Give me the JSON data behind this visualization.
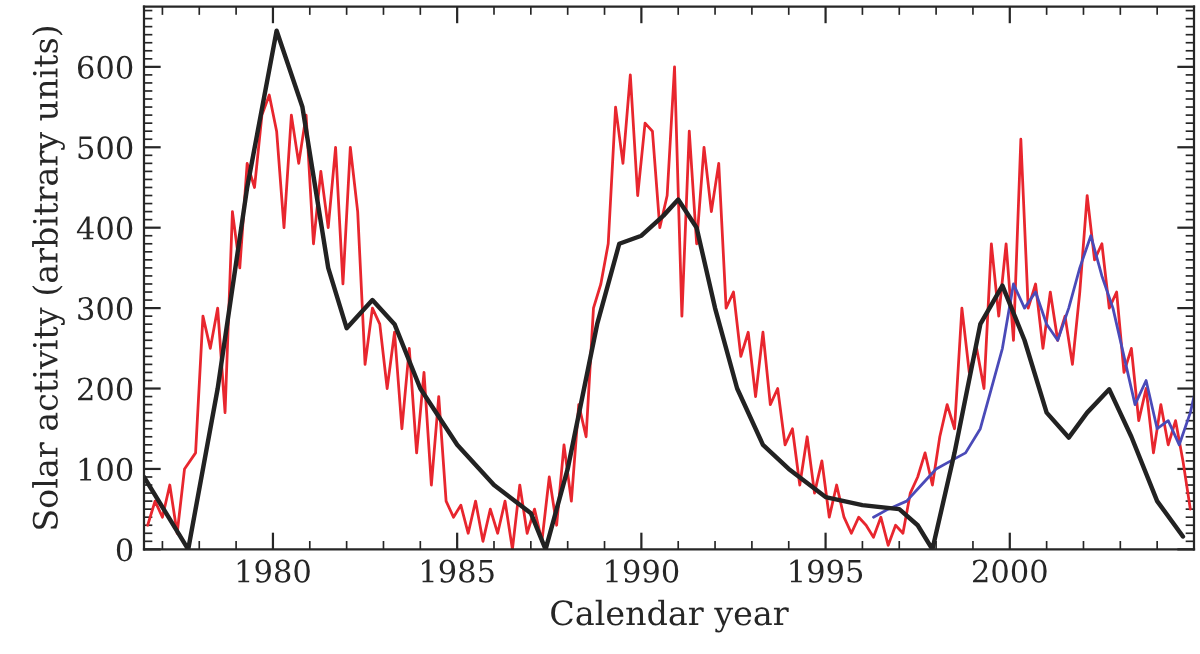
{
  "chart_data": {
    "type": "line",
    "xlabel": "Calendar year",
    "ylabel": "Solar activity (arbitrary units)",
    "xlim": [
      1976.5,
      2005.0
    ],
    "xticks": [
      1980,
      1985,
      1990,
      1995,
      2000
    ],
    "ylim": [
      0,
      675
    ],
    "yticks": [
      0,
      100,
      200,
      300,
      400,
      500,
      600
    ],
    "grid": false,
    "legend": false,
    "marker": "none",
    "line_style": "solid",
    "series": [
      {
        "color": "#e8262e",
        "x": [
          1976.6,
          1976.8,
          1977.0,
          1977.2,
          1977.4,
          1977.6,
          1977.9,
          1978.1,
          1978.3,
          1978.5,
          1978.7,
          1978.9,
          1979.1,
          1979.3,
          1979.5,
          1979.7,
          1979.9,
          1980.1,
          1980.3,
          1980.5,
          1980.7,
          1980.9,
          1981.1,
          1981.3,
          1981.5,
          1981.7,
          1981.9,
          1982.1,
          1982.3,
          1982.5,
          1982.7,
          1982.9,
          1983.1,
          1983.3,
          1983.5,
          1983.7,
          1983.9,
          1984.1,
          1984.3,
          1984.5,
          1984.7,
          1984.9,
          1985.1,
          1985.3,
          1985.5,
          1985.7,
          1985.9,
          1986.1,
          1986.3,
          1986.5,
          1986.7,
          1986.9,
          1987.1,
          1987.3,
          1987.5,
          1987.7,
          1987.9,
          1988.1,
          1988.3,
          1988.5,
          1988.7,
          1988.9,
          1989.1,
          1989.3,
          1989.5,
          1989.7,
          1989.9,
          1990.1,
          1990.3,
          1990.5,
          1990.7,
          1990.9,
          1991.1,
          1991.3,
          1991.5,
          1991.7,
          1991.9,
          1992.1,
          1992.3,
          1992.5,
          1992.7,
          1992.9,
          1993.1,
          1993.3,
          1993.5,
          1993.7,
          1993.9,
          1994.1,
          1994.3,
          1994.5,
          1994.7,
          1994.9,
          1995.1,
          1995.3,
          1995.5,
          1995.7,
          1995.9,
          1996.1,
          1996.3,
          1996.5,
          1996.7,
          1996.9,
          1997.1,
          1997.3,
          1997.5,
          1997.7,
          1997.9,
          1998.1,
          1998.3,
          1998.5,
          1998.7,
          1998.9,
          1999.1,
          1999.3,
          1999.5,
          1999.7,
          1999.9,
          2000.1,
          2000.3,
          2000.5,
          2000.7,
          2000.9,
          2001.1,
          2001.3,
          2001.5,
          2001.7,
          2001.9,
          2002.1,
          2002.3,
          2002.5,
          2002.7,
          2002.9,
          2003.1,
          2003.3,
          2003.5,
          2003.7,
          2003.9,
          2004.1,
          2004.3,
          2004.5,
          2004.7,
          2004.9
        ],
        "values": [
          30,
          60,
          40,
          80,
          20,
          100,
          120,
          290,
          250,
          300,
          170,
          420,
          350,
          480,
          450,
          540,
          565,
          520,
          400,
          540,
          480,
          540,
          380,
          470,
          400,
          500,
          330,
          500,
          420,
          230,
          300,
          280,
          200,
          270,
          150,
          250,
          120,
          220,
          80,
          190,
          60,
          40,
          55,
          20,
          60,
          10,
          50,
          20,
          60,
          0,
          80,
          20,
          50,
          10,
          90,
          30,
          130,
          60,
          180,
          140,
          300,
          330,
          380,
          550,
          480,
          590,
          440,
          530,
          520,
          400,
          440,
          600,
          290,
          520,
          380,
          500,
          420,
          480,
          300,
          320,
          240,
          270,
          190,
          270,
          180,
          200,
          130,
          150,
          80,
          140,
          70,
          110,
          40,
          80,
          40,
          20,
          40,
          30,
          15,
          40,
          5,
          30,
          20,
          70,
          90,
          120,
          80,
          140,
          180,
          150,
          300,
          220,
          250,
          200,
          380,
          290,
          380,
          260,
          510,
          300,
          330,
          250,
          320,
          260,
          290,
          230,
          320,
          440,
          360,
          380,
          300,
          320,
          220,
          250,
          160,
          200,
          120,
          180,
          130,
          160,
          110,
          50
        ]
      },
      {
        "color": "#4a4ab8",
        "x": [
          1996.3,
          1996.7,
          1997.2,
          1997.6,
          1998.0,
          1998.4,
          1998.8,
          1999.2,
          1999.5,
          1999.8,
          2000.1,
          2000.4,
          2000.7,
          2001.0,
          2001.3,
          2001.6,
          2001.9,
          2002.2,
          2002.5,
          2002.8,
          2003.1,
          2003.4,
          2003.7,
          2004.0,
          2004.3,
          2004.6,
          2004.9,
          2005.0
        ],
        "values": [
          40,
          50,
          60,
          80,
          100,
          110,
          120,
          150,
          200,
          250,
          330,
          300,
          320,
          280,
          260,
          300,
          350,
          390,
          340,
          300,
          240,
          180,
          210,
          150,
          160,
          130,
          170,
          190
        ]
      },
      {
        "color": "#222222",
        "x": [
          1976.5,
          1977.1,
          1977.7,
          1978.5,
          1979.3,
          1980.1,
          1980.8,
          1981.5,
          1982.0,
          1982.7,
          1983.3,
          1984.0,
          1985.0,
          1986.0,
          1987.0,
          1987.4,
          1988.0,
          1988.8,
          1989.4,
          1990.0,
          1990.6,
          1991.0,
          1991.5,
          1992.0,
          1992.6,
          1993.3,
          1994.0,
          1995.0,
          1996.0,
          1997.0,
          1997.5,
          1997.9,
          1998.5,
          1999.2,
          1999.8,
          2000.4,
          2001.0,
          2001.6,
          2002.1,
          2002.7,
          2003.3,
          2004.0,
          2004.7
        ],
        "values": [
          90,
          45,
          0,
          200,
          450,
          645,
          550,
          350,
          275,
          310,
          280,
          200,
          130,
          80,
          45,
          0,
          100,
          280,
          380,
          390,
          415,
          435,
          400,
          300,
          200,
          130,
          100,
          65,
          55,
          50,
          30,
          0,
          120,
          280,
          328,
          260,
          170,
          139,
          170,
          199,
          140,
          60,
          16
        ]
      }
    ]
  }
}
